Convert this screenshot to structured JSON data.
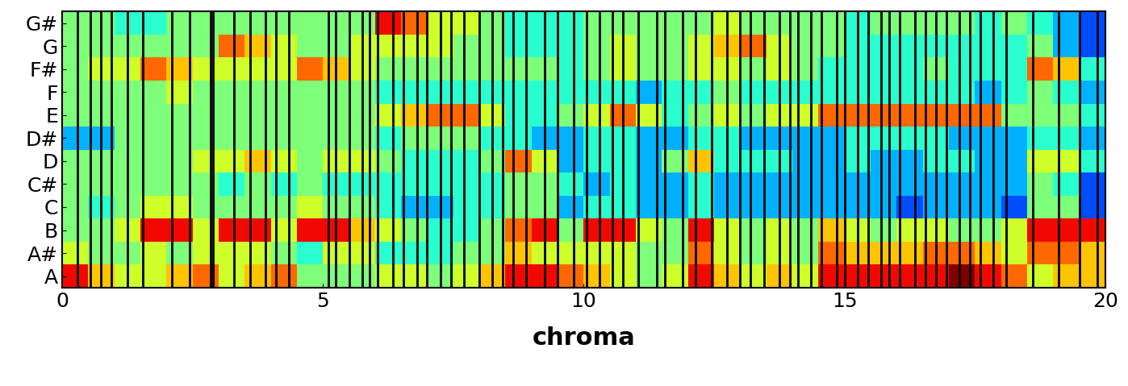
{
  "chart_data": {
    "type": "heatmap",
    "x_label": "chroma",
    "xlim": [
      0,
      20
    ],
    "xticks": [
      0,
      5,
      10,
      15,
      20
    ],
    "rows": [
      "A",
      "A#",
      "B",
      "C",
      "C#",
      "D",
      "D#",
      "E",
      "F",
      "F#",
      "G",
      "G#"
    ],
    "clim": [
      0,
      1
    ],
    "cells": [
      [
        0.9,
        0.7,
        0.6,
        0.6,
        0.7,
        0.8,
        0.6,
        0.7,
        0.8,
        0.5,
        0.5,
        0.5,
        0.6,
        0.6,
        0.5,
        0.6,
        0.7,
        0.9,
        0.9,
        0.8,
        0.7,
        0.6,
        0.5,
        0.6,
        0.9,
        0.7,
        0.6,
        0.7,
        0.6,
        0.9,
        0.9,
        0.9,
        0.9,
        0.9,
        1.0,
        0.9,
        0.8,
        0.6,
        0.7,
        0.7
      ],
      [
        0.6,
        0.5,
        0.5,
        0.6,
        0.5,
        0.6,
        0.6,
        0.6,
        0.5,
        0.4,
        0.6,
        0.6,
        0.4,
        0.4,
        0.4,
        0.5,
        0.5,
        0.7,
        0.6,
        0.6,
        0.6,
        0.6,
        0.5,
        0.5,
        0.8,
        0.6,
        0.5,
        0.6,
        0.5,
        0.8,
        0.7,
        0.7,
        0.7,
        0.8,
        0.8,
        0.7,
        0.6,
        0.8,
        0.8,
        0.7
      ],
      [
        0.5,
        0.5,
        0.6,
        0.9,
        0.9,
        0.6,
        0.9,
        0.9,
        0.6,
        0.9,
        0.9,
        0.7,
        0.6,
        0.5,
        0.4,
        0.4,
        0.5,
        0.8,
        0.9,
        0.5,
        0.9,
        0.9,
        0.6,
        0.5,
        0.9,
        0.6,
        0.5,
        0.6,
        0.5,
        0.7,
        0.6,
        0.5,
        0.6,
        0.6,
        0.5,
        0.5,
        0.6,
        0.9,
        0.9,
        0.9
      ],
      [
        0.5,
        0.4,
        0.5,
        0.6,
        0.6,
        0.5,
        0.5,
        0.5,
        0.5,
        0.6,
        0.5,
        0.5,
        0.4,
        0.3,
        0.3,
        0.4,
        0.4,
        0.5,
        0.5,
        0.3,
        0.4,
        0.4,
        0.3,
        0.3,
        0.4,
        0.3,
        0.3,
        0.3,
        0.3,
        0.3,
        0.3,
        0.3,
        0.2,
        0.3,
        0.3,
        0.3,
        0.2,
        0.5,
        0.5,
        0.2
      ],
      [
        0.5,
        0.5,
        0.5,
        0.5,
        0.5,
        0.5,
        0.4,
        0.5,
        0.4,
        0.5,
        0.4,
        0.4,
        0.4,
        0.4,
        0.4,
        0.4,
        0.4,
        0.5,
        0.5,
        0.4,
        0.3,
        0.4,
        0.3,
        0.3,
        0.4,
        0.3,
        0.3,
        0.3,
        0.3,
        0.3,
        0.3,
        0.3,
        0.3,
        0.3,
        0.3,
        0.3,
        0.3,
        0.5,
        0.4,
        0.2
      ],
      [
        0.5,
        0.5,
        0.5,
        0.5,
        0.5,
        0.6,
        0.6,
        0.7,
        0.6,
        0.5,
        0.6,
        0.6,
        0.5,
        0.4,
        0.4,
        0.4,
        0.5,
        0.8,
        0.6,
        0.3,
        0.4,
        0.4,
        0.3,
        0.5,
        0.7,
        0.4,
        0.4,
        0.4,
        0.3,
        0.3,
        0.4,
        0.3,
        0.3,
        0.4,
        0.4,
        0.3,
        0.3,
        0.6,
        0.6,
        0.4
      ],
      [
        0.3,
        0.3,
        0.5,
        0.5,
        0.5,
        0.5,
        0.5,
        0.5,
        0.5,
        0.5,
        0.5,
        0.5,
        0.4,
        0.5,
        0.5,
        0.5,
        0.4,
        0.4,
        0.3,
        0.3,
        0.4,
        0.4,
        0.3,
        0.3,
        0.4,
        0.4,
        0.3,
        0.3,
        0.3,
        0.3,
        0.4,
        0.4,
        0.4,
        0.4,
        0.3,
        0.3,
        0.3,
        0.4,
        0.4,
        0.3
      ],
      [
        0.5,
        0.5,
        0.5,
        0.5,
        0.5,
        0.5,
        0.5,
        0.5,
        0.5,
        0.5,
        0.5,
        0.5,
        0.6,
        0.7,
        0.8,
        0.8,
        0.6,
        0.4,
        0.4,
        0.5,
        0.6,
        0.8,
        0.6,
        0.4,
        0.5,
        0.6,
        0.5,
        0.6,
        0.6,
        0.8,
        0.8,
        0.8,
        0.8,
        0.8,
        0.8,
        0.8,
        0.5,
        0.5,
        0.5,
        0.4
      ],
      [
        0.5,
        0.5,
        0.5,
        0.5,
        0.6,
        0.5,
        0.5,
        0.5,
        0.5,
        0.5,
        0.5,
        0.5,
        0.4,
        0.4,
        0.4,
        0.4,
        0.4,
        0.4,
        0.4,
        0.4,
        0.4,
        0.4,
        0.3,
        0.4,
        0.4,
        0.5,
        0.4,
        0.4,
        0.4,
        0.4,
        0.4,
        0.4,
        0.4,
        0.4,
        0.4,
        0.3,
        0.4,
        0.5,
        0.4,
        0.3
      ],
      [
        0.5,
        0.6,
        0.6,
        0.8,
        0.7,
        0.6,
        0.6,
        0.6,
        0.6,
        0.8,
        0.7,
        0.6,
        0.5,
        0.5,
        0.5,
        0.5,
        0.5,
        0.5,
        0.5,
        0.4,
        0.5,
        0.6,
        0.5,
        0.5,
        0.6,
        0.6,
        0.5,
        0.6,
        0.5,
        0.4,
        0.4,
        0.4,
        0.4,
        0.5,
        0.4,
        0.4,
        0.4,
        0.8,
        0.7,
        0.4
      ],
      [
        0.5,
        0.5,
        0.5,
        0.5,
        0.5,
        0.5,
        0.8,
        0.7,
        0.6,
        0.5,
        0.5,
        0.6,
        0.6,
        0.6,
        0.6,
        0.5,
        0.5,
        0.4,
        0.4,
        0.4,
        0.5,
        0.6,
        0.5,
        0.5,
        0.6,
        0.7,
        0.8,
        0.6,
        0.5,
        0.5,
        0.4,
        0.4,
        0.4,
        0.4,
        0.4,
        0.4,
        0.4,
        0.5,
        0.3,
        0.2
      ],
      [
        0.5,
        0.5,
        0.4,
        0.4,
        0.5,
        0.5,
        0.5,
        0.5,
        0.5,
        0.5,
        0.5,
        0.5,
        0.9,
        0.8,
        0.6,
        0.6,
        0.5,
        0.4,
        0.4,
        0.4,
        0.5,
        0.5,
        0.5,
        0.5,
        0.5,
        0.6,
        0.5,
        0.5,
        0.5,
        0.5,
        0.4,
        0.5,
        0.5,
        0.5,
        0.5,
        0.4,
        0.5,
        0.4,
        0.3,
        0.2
      ]
    ],
    "beats": [
      0.3,
      0.55,
      0.75,
      0.95,
      1.25,
      1.55,
      2.1,
      2.45,
      2.85,
      2.9,
      3.3,
      3.6,
      3.9,
      4.1,
      4.35,
      5.1,
      5.25,
      5.5,
      5.75,
      5.9,
      6.05,
      6.35,
      6.55,
      6.8,
      7.0,
      7.25,
      7.45,
      7.7,
      8.0,
      8.25,
      8.45,
      8.65,
      8.9,
      9.25,
      9.5,
      9.8,
      10.05,
      10.3,
      10.55,
      10.75,
      11.05,
      11.4,
      11.55,
      11.9,
      12.15,
      12.45,
      12.75,
      13.0,
      13.2,
      13.45,
      13.75,
      13.95,
      14.1,
      14.35,
      14.55,
      14.85,
      15.0,
      15.25,
      15.45,
      15.7,
      15.85,
      16.05,
      16.35,
      16.55,
      16.75,
      16.95,
      17.2,
      17.4,
      17.6,
      17.85,
      18.1,
      18.6,
      19.1,
      19.5,
      19.85
    ]
  }
}
